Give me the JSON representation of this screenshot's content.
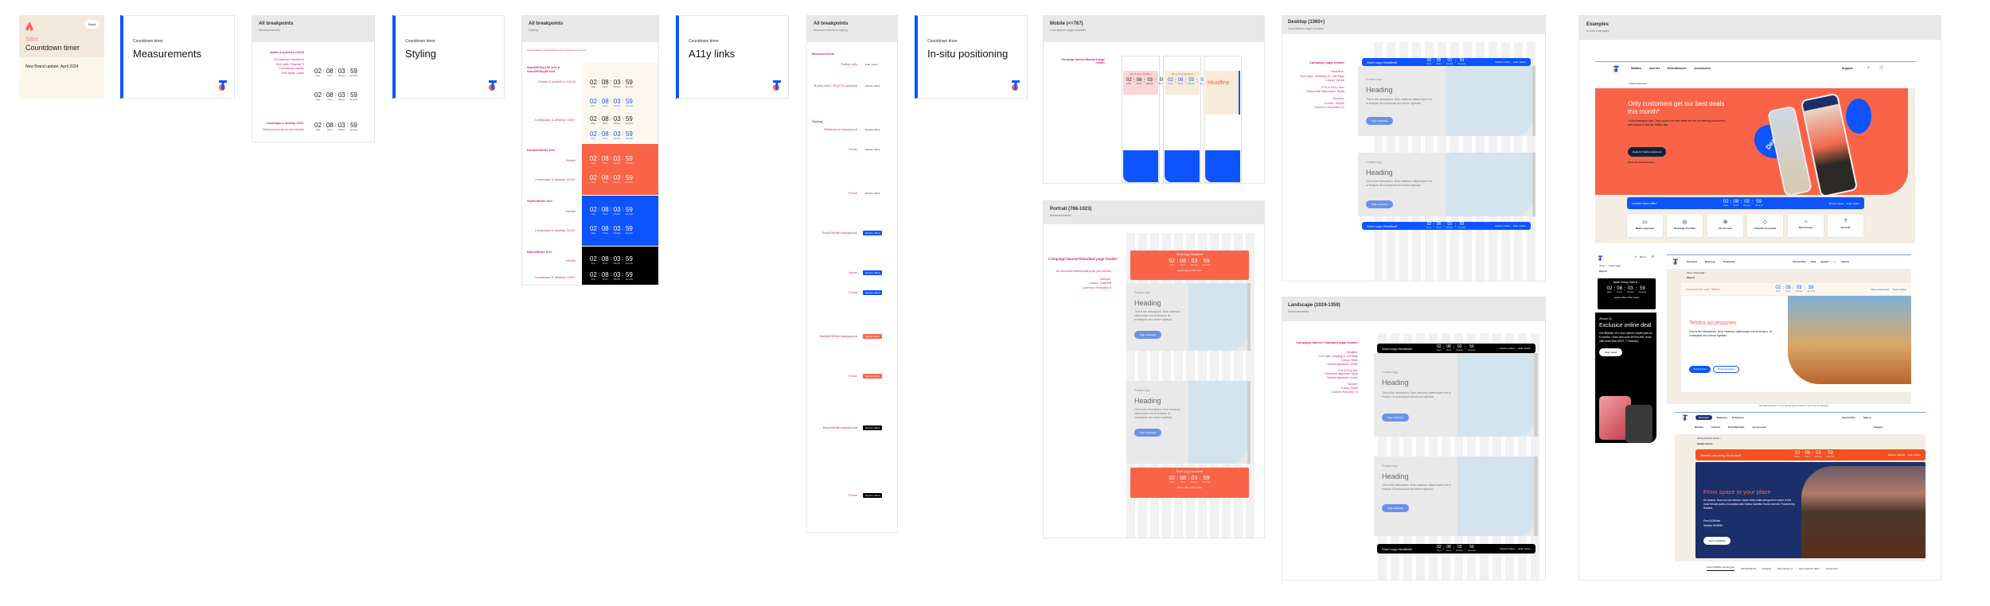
{
  "countdown": {
    "values": [
      "02",
      "08",
      "03",
      "59"
    ],
    "labels": [
      "Days",
      "Hours",
      "Minutes",
      "Seconds"
    ],
    "separator": ":"
  },
  "colors": {
    "brand_blue": "#0d54ff",
    "earth60": "#f96449",
    "sand": "#fdf8ee",
    "annotation_pink": "#d6257a",
    "black": "#000000",
    "navy": "#1b2f6b"
  },
  "cover": {
    "badge": "Build",
    "kicker": "Slim",
    "title": "Countdown timer",
    "subtitle": "New Brand update: April 2024"
  },
  "sections": {
    "kicker": "Countdown timer",
    "measurements": "Measurements",
    "styling": "Styling",
    "a11y": "A11y links",
    "insitu": "In-situ positioning"
  },
  "bp_measurements": {
    "title": "All breakpoints",
    "subtitle": "Measurements",
    "mobile_label": "Mobile & portrait (<=1023)",
    "notes_mobile": [
      "Countdown Numbers",
      "Text style: Display S",
      "Countdown labels",
      "Text style: Label"
    ],
    "desktop_label": "Landscape & desktop 1024+",
    "notes_desktop": "Measurements as per Mobile"
  },
  "bp_styling": {
    "title": "All breakpoints",
    "subtitle": "Styling",
    "note": "Note variations of countdown timer depend on bg colour",
    "groups": [
      {
        "label": "Sand20/Sky100 text & Sand20/Sky80 text",
        "rows": [
          "Mobile & portrait (<=1023)",
          "Landscape & desktop 1024+"
        ]
      },
      {
        "label": "Earth60/White text",
        "rows": [
          "Mobile",
          "Landscape & desktop 1024+"
        ]
      },
      {
        "label": "Sky60/White text",
        "rows": [
          "Mobile",
          "Landscape & desktop 1024+"
        ]
      },
      {
        "label": "Black/White text",
        "rows": [
          "Mobile",
          "Landscape & desktop 1024+"
        ]
      }
    ]
  },
  "a11y_bp": {
    "title": "All breakpoints",
    "subtitle": "Measurements & styling",
    "headings": [
      "Measurements",
      "Styling"
    ],
    "rows": [
      "Button only",
      "Button and CTA (CTA optional)",
      "White/sand background",
      "Hover",
      "Focus",
      "Sky60/White background",
      "Earth60/White background",
      "Black/White background"
    ],
    "link_label": "Hide motion",
    "cta_label": "Explore offers"
  },
  "mobile": {
    "title": "Mobile (<=767)",
    "subtitle": "Countdown page location",
    "label": "Campaign banner/Standard page header",
    "card_title": "Short copy Headline",
    "headline": "Headline"
  },
  "portrait": {
    "title": "Portrait (768-1023)",
    "subtitle": "Measurements",
    "label": "Campaign banner/Standard page header",
    "notes": [
      "All measurements/styling as per Mobile",
      "Surface:",
      "Colour: Earth60",
      "Corners: Rounded 8"
    ],
    "bar_title": "Short copy Headline0",
    "cta": "Explore offers",
    "link": "Hide motion",
    "product": "Product logo",
    "heading": "Heading",
    "desc": "This is the description. Duis maximus ullamcorper est at tempus. At consequat orci rutrum egestas.",
    "button": "High Emphasis"
  },
  "desktop": {
    "title": "Desktop (1360+)",
    "subtitle": "Countdown page location",
    "label": "Campaign page header",
    "notes": [
      "Headline:",
      "Text style: Heading S/ Left Align",
      "Colour: White",
      "CTA & A11y link:",
      "Horizontal alignment: Right",
      "Surface:",
      "Colour: Sky60",
      "Corners: Rounded 12"
    ],
    "bar_title": "Short copy Headline0",
    "cta": "Explore offers",
    "link": "Hide motion",
    "product": "Product logo",
    "heading": "Heading",
    "desc": "This is the description. Duis maximus ullamcorper est at tempus. At consequat orci rutrum egestas.",
    "button": "High Emphasis"
  },
  "landscape": {
    "title": "Landscape (1024-1359)",
    "subtitle": "Measurements",
    "label": "Campaign banner/ Standard page header",
    "notes": [
      "Headline:",
      "Text style: Heading S/ Left Align",
      "Colour: White",
      "Vertical alignment: centre",
      "CTA & A11y link:",
      "Horizontal alignment: Right",
      "Vertical alignment: centre",
      "Surface:",
      "Colour: Black",
      "Corners: Rounded 12"
    ],
    "bar_title": "Short copy Headline0",
    "cta": "Explore offers",
    "link": "Hide motion",
    "product": "Product logo",
    "heading": "Heading",
    "desc": "This is the description. Duis maximus ullamcorper est at tempus. At consequat orci rutrum egestas.",
    "button": "High Emphasis"
  },
  "examples": {
    "title": "Examples",
    "subtitle": "In-situ examples",
    "ex1": {
      "nav": [
        "Mobiles",
        "Internet",
        "Entertainment",
        "Accessories"
      ],
      "support": "Support",
      "breadcrumb": "Telstra Personal",
      "hero_title": "Only customers get our best deals this month*",
      "hero_desc": "*Sorry everyone else. This month our best deals are for our existing customers – and they're in the My Telstra app.",
      "hero_cta": "Deals for Telstra customers",
      "hero_link": "Deals for everyone else",
      "deals": "Deals",
      "bar_title": "Limited time offer!",
      "bar_cta": "Explore deals",
      "bar_link": "Hide motion",
      "quick": [
        "Make a payment",
        "Recharge Pre-Paid",
        "Fix an issue",
        "Activate my mobile",
        "Move house",
        "Get help"
      ]
    },
    "ex2": {
      "signin": "Sign in",
      "breadcrumb": "Home / ... / Parent page /",
      "page": "Page H1",
      "card_title": "Black Friday Sale in...",
      "cta": "Explore offers",
      "link": "Hide motion",
      "tag": "iPhone 15",
      "title": "Exclusice online deal",
      "desc": "Get $50/mth off a new Upfront mobile plan for 6 months. Order with code BFONLINE. Hurry offer ends 9am AEDT, 7 February.",
      "button": "Shop deals"
    },
    "ex3": {
      "nav": [
        "Personal",
        "Business",
        "Enterprise"
      ],
      "right": [
        "Telstra Plus",
        "Help",
        "Search",
        "Sign in"
      ],
      "breadcrumb": "Home / Parent page /",
      "page": "Page H1",
      "bar_title": "Accessorize with Telstra",
      "bar_cta": "Shop accessories",
      "bar_link": "Show motion",
      "hero_title": "Telstra accessories",
      "hero_desc": "This is the description. Duis maximus ullamcorper est at tempus. At consequat orci rutrum egestas.",
      "primary": "High Emphasis",
      "secondary": "Medium Emphasis"
    },
    "notice": "5G network closure. Try our new 5G device checker to see if you are impacted.",
    "ex4": {
      "nav": [
        "Personal",
        "Business",
        "Enterprise"
      ],
      "right": [
        "Telstra Plus",
        "Sign in"
      ],
      "subnav": [
        "Mobiles",
        "Internet",
        "Entertainment",
        "Accessories"
      ],
      "support": "Support",
      "breadcrumb": "Telstra personal / Internet /",
      "page": "Satellite Internet",
      "bar_title": "Starlink preparing for launch!",
      "bar_cta": "Explore Starlink",
      "bar_link": "Hide motion",
      "hero_title": "From space to your place",
      "hero_desc": "It's landed. Now you can stream, make video calls and game in some of the most remote parts of Australia with Telstra Satellite Home Internet. Powered by Starlink.",
      "plan": "Plan $135/mth",
      "kit": "Starlink Kit $599",
      "button": "Check availability",
      "tabs": [
        "Select Satellite Internet plan",
        "Add Starlink Kit",
        "Features",
        "Why choose us",
        "New customer offers",
        "Accessories"
      ]
    }
  }
}
